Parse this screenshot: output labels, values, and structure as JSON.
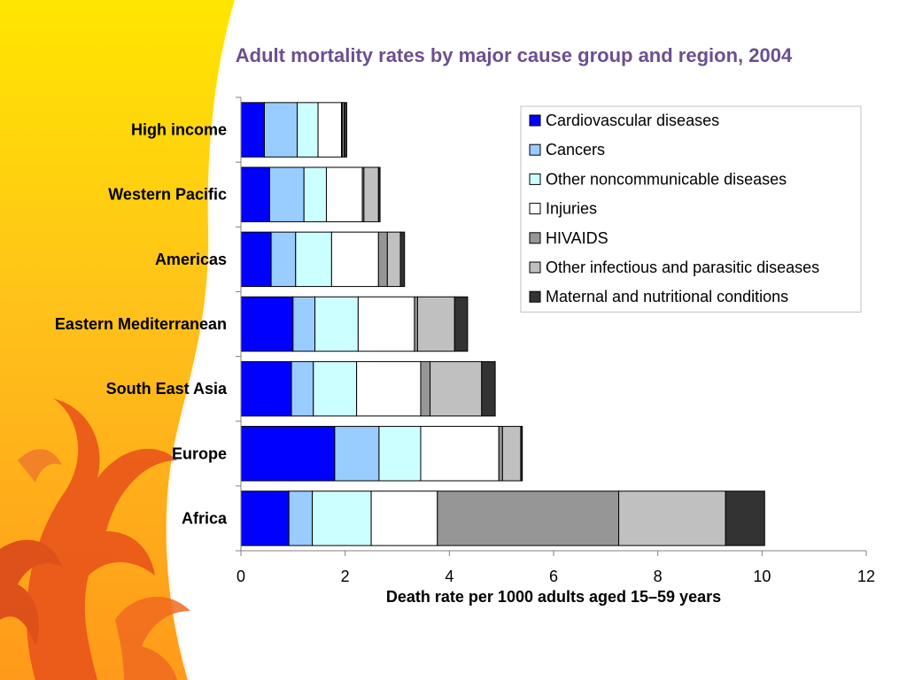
{
  "chart_data": {
    "type": "bar",
    "orientation": "horizontal",
    "stacked": true,
    "title": "Adult mortality rates by major cause group and region, 2004",
    "xlabel": "Death rate per 1000 adults aged 15–59 years",
    "ylabel": "",
    "xlim": [
      0,
      12
    ],
    "xticks": [
      0,
      2,
      4,
      6,
      8,
      10,
      12
    ],
    "grid": false,
    "legend_position": "top-right",
    "categories": [
      "High income",
      "Western Pacific",
      "Americas",
      "Eastern Mediterranean",
      "South East Asia",
      "Europe",
      "Africa"
    ],
    "series": [
      {
        "name": "Cardiovascular diseases",
        "color": "#0000ff",
        "values": [
          0.45,
          0.55,
          0.58,
          1.0,
          0.97,
          1.8,
          0.92
        ]
      },
      {
        "name": "Cancers",
        "color": "#99ccff",
        "values": [
          0.63,
          0.66,
          0.47,
          0.42,
          0.42,
          0.85,
          0.45
        ]
      },
      {
        "name": "Other noncommunicable diseases",
        "color": "#ccffff",
        "values": [
          0.4,
          0.43,
          0.69,
          0.83,
          0.83,
          0.8,
          1.13
        ]
      },
      {
        "name": "Injuries",
        "color": "#ffffff",
        "values": [
          0.45,
          0.69,
          0.9,
          1.08,
          1.23,
          1.5,
          1.27
        ]
      },
      {
        "name": "HIVAIDS",
        "color": "#969696",
        "values": [
          0.02,
          0.03,
          0.17,
          0.06,
          0.18,
          0.07,
          3.48
        ]
      },
      {
        "name": "Other infectious and parasitic diseases",
        "color": "#c0c0c0",
        "values": [
          0.03,
          0.28,
          0.25,
          0.71,
          0.99,
          0.35,
          2.05
        ]
      },
      {
        "name": "Maternal and nutritional conditions",
        "color": "#333333",
        "values": [
          0.05,
          0.03,
          0.08,
          0.25,
          0.26,
          0.03,
          0.75
        ]
      }
    ]
  }
}
